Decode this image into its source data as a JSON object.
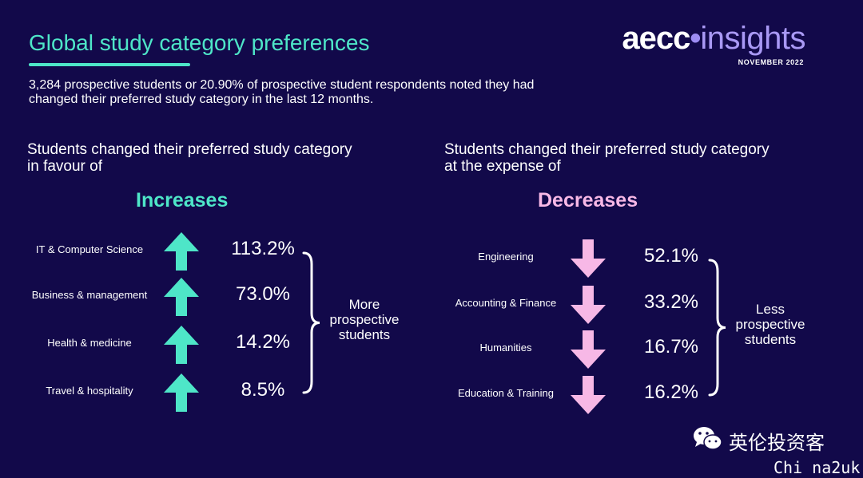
{
  "title": "Global study category preferences",
  "logo": {
    "brand": "aecc",
    "dot": "•",
    "product": "insights",
    "date": "NOVEMBER 2022"
  },
  "intro": "3,284 prospective students or 20.90% of prospective student respondents noted they had changed their preferred study category in the last 12 months.",
  "left_heading": "Students changed their preferred study category in favour of",
  "right_heading": "Students changed their preferred study category at the expense of",
  "colors": {
    "increase": "#4ee6c8",
    "decrease": "#f7b8e6",
    "background": "#12094a"
  },
  "chart_data": [
    {
      "type": "table",
      "title": "Increases",
      "direction": "up",
      "categories": [
        "IT & Computer Science",
        "Business & management",
        "Health & medicine",
        "Travel & hospitality"
      ],
      "values": [
        113.2,
        73.0,
        14.2,
        8.5
      ],
      "value_labels": [
        "113.2%",
        "73.0%",
        "14.2%",
        "8.5%"
      ],
      "annotation": "More prospective students"
    },
    {
      "type": "table",
      "title": "Decreases",
      "direction": "down",
      "categories": [
        "Engineering",
        "Accounting & Finance",
        "Humanities",
        "Education & Training"
      ],
      "values": [
        52.1,
        33.2,
        16.7,
        16.2
      ],
      "value_labels": [
        "52.1%",
        "33.2%",
        "16.7%",
        "16.2%"
      ],
      "annotation": "Less prospective students"
    }
  ],
  "watermark": {
    "icon": "wechat-icon",
    "account": "英伦投资客",
    "site": "Chi na2uk"
  }
}
